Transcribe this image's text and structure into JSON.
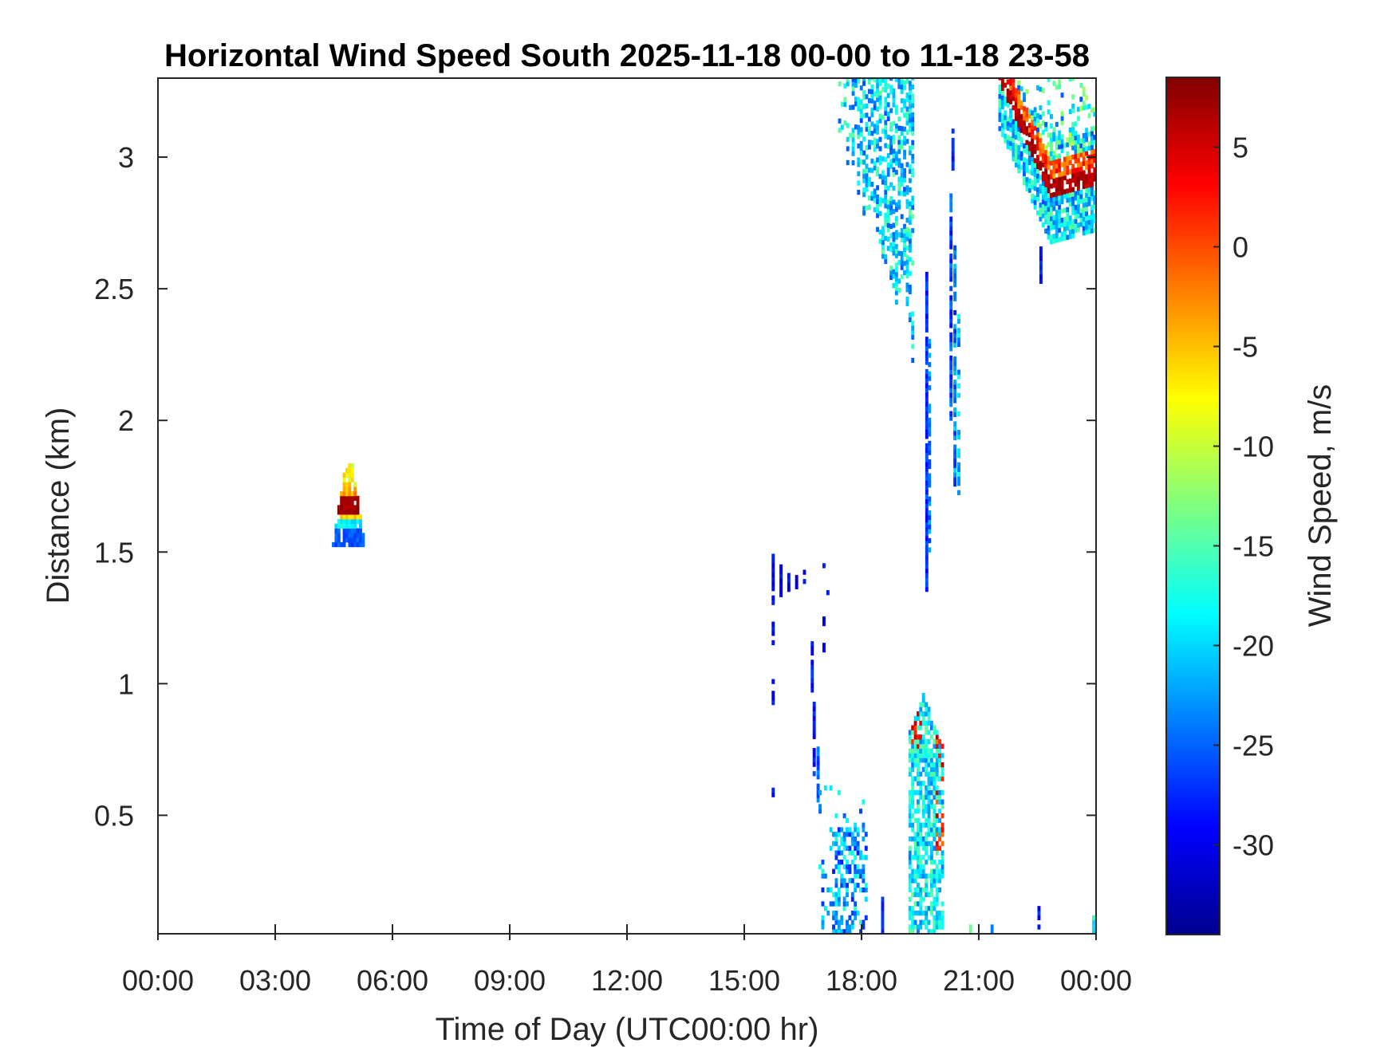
{
  "chart_data": {
    "type": "heatmap",
    "title": "Horizontal Wind Speed South 2025-11-18 00-00 to 11-18 23-58",
    "xlabel": "Time of Day (UTC00:00 hr)",
    "ylabel": "Distance (km)",
    "colorbar_label": "Wind Speed, m/s",
    "x_unit": "hours",
    "xlim": [
      0,
      24
    ],
    "ylim": [
      0.05,
      3.3
    ],
    "clim": [
      -34.5,
      8.5
    ],
    "colormap": "jet",
    "x_ticks": [
      0,
      3,
      6,
      9,
      12,
      15,
      18,
      21,
      24
    ],
    "x_tick_labels": [
      "00:00",
      "03:00",
      "06:00",
      "09:00",
      "12:00",
      "15:00",
      "18:00",
      "21:00",
      "00:00"
    ],
    "y_ticks": [
      0.5,
      1,
      1.5,
      2,
      2.5,
      3
    ],
    "y_tick_labels": [
      "0.5",
      "1",
      "1.5",
      "2",
      "2.5",
      "3"
    ],
    "c_ticks": [
      5,
      0,
      -5,
      -10,
      -15,
      -20,
      -25,
      -30
    ],
    "c_tick_labels": [
      "5",
      "0",
      "-5",
      "-10",
      "-15",
      "-20",
      "-25",
      "-30"
    ],
    "regions": [
      {
        "hour": [
          4.5,
          5.2
        ],
        "km": [
          1.52,
          1.8
        ],
        "speed": "mixed (-30 to 7)"
      },
      {
        "hour": [
          15.6,
          17.0
        ],
        "km": [
          0.55,
          1.48
        ],
        "speed": "-28"
      },
      {
        "hour": [
          17.0,
          18.0
        ],
        "km": [
          0.05,
          0.65
        ],
        "speed": "-26"
      },
      {
        "hour": [
          17.4,
          19.3
        ],
        "km": [
          2.25,
          3.3
        ],
        "speed": "-22"
      },
      {
        "hour": [
          19.2,
          20.1
        ],
        "km": [
          0.05,
          0.95
        ],
        "speed": "mixed (-28 to 2)"
      },
      {
        "hour": [
          19.5,
          19.9
        ],
        "km": [
          1.35,
          2.55
        ],
        "speed": "-26"
      },
      {
        "hour": [
          20.1,
          20.7
        ],
        "km": [
          1.7,
          2.85
        ],
        "speed": "-24"
      },
      {
        "hour": [
          21.5,
          24.0
        ],
        "km": [
          2.52,
          3.3
        ],
        "speed": "mixed (-25 to 8)"
      }
    ]
  }
}
